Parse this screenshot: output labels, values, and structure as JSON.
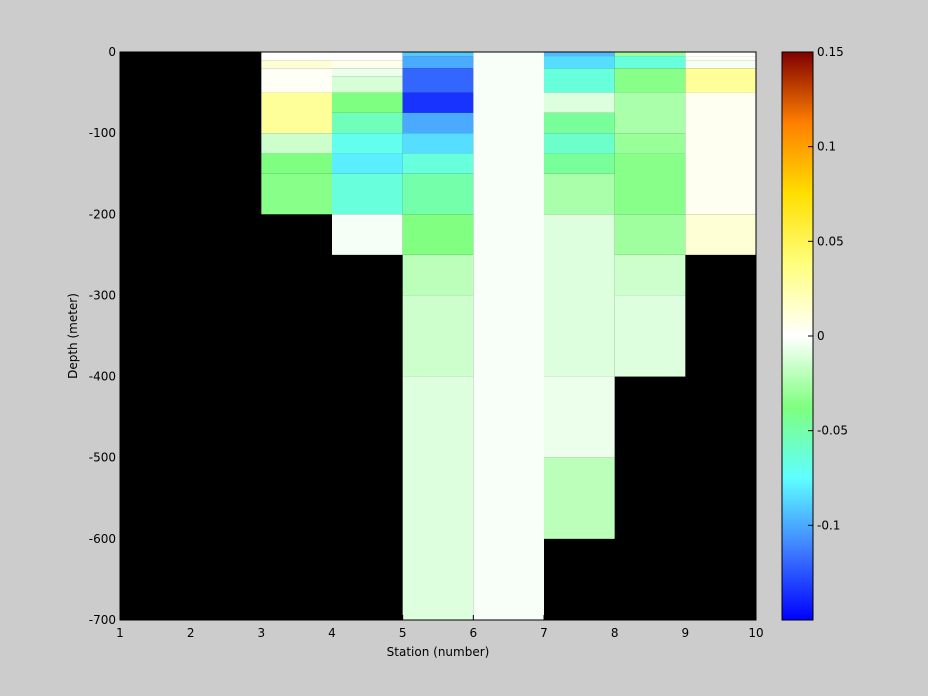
{
  "chart_data": {
    "type": "heatmap",
    "title": "",
    "xlabel": "Station (number)",
    "ylabel": "Depth (meter)",
    "xlim": [
      1,
      10
    ],
    "ylim": [
      -700,
      0
    ],
    "xticks": [
      "1",
      "2",
      "3",
      "4",
      "5",
      "6",
      "7",
      "8",
      "9",
      "10"
    ],
    "yticks": [
      "0",
      "-100",
      "-200",
      "-300",
      "-400",
      "-500",
      "-600",
      "-700"
    ],
    "colorbar": {
      "range": [
        -0.15,
        0.15
      ],
      "ticks": [
        "0.15",
        "0.1",
        "0.05",
        "0",
        "-0.05",
        "-0.1"
      ],
      "tick_values": [
        0.15,
        0.1,
        0.05,
        0,
        -0.05,
        -0.1
      ]
    },
    "background_color": "#000000",
    "columns": [
      {
        "x0": 3,
        "x1": 4,
        "cells": [
          {
            "top": 0,
            "bottom": -10,
            "value": 0.0
          },
          {
            "top": -10,
            "bottom": -20,
            "value": 0.012
          },
          {
            "top": -20,
            "bottom": -50,
            "value": 0.003
          },
          {
            "top": -50,
            "bottom": -100,
            "value": 0.03
          },
          {
            "top": -100,
            "bottom": -125,
            "value": -0.015
          },
          {
            "top": -125,
            "bottom": -150,
            "value": -0.038
          },
          {
            "top": -150,
            "bottom": -200,
            "value": -0.035
          }
        ]
      },
      {
        "x0": 4,
        "x1": 5,
        "cells": [
          {
            "top": 0,
            "bottom": -10,
            "value": 0.0
          },
          {
            "top": -10,
            "bottom": -20,
            "value": 0.006
          },
          {
            "top": -20,
            "bottom": -30,
            "value": -0.006
          },
          {
            "top": -30,
            "bottom": -50,
            "value": -0.012
          },
          {
            "top": -50,
            "bottom": -75,
            "value": -0.038
          },
          {
            "top": -75,
            "bottom": -100,
            "value": -0.055
          },
          {
            "top": -100,
            "bottom": -125,
            "value": -0.07
          },
          {
            "top": -125,
            "bottom": -150,
            "value": -0.08
          },
          {
            "top": -150,
            "bottom": -200,
            "value": -0.065
          },
          {
            "top": -200,
            "bottom": -250,
            "value": -0.003
          }
        ]
      },
      {
        "x0": 5,
        "x1": 6,
        "cells": [
          {
            "top": 0,
            "bottom": -5,
            "value": -0.09
          },
          {
            "top": -5,
            "bottom": -20,
            "value": -0.1
          },
          {
            "top": -20,
            "bottom": -50,
            "value": -0.12
          },
          {
            "top": -50,
            "bottom": -75,
            "value": -0.135
          },
          {
            "top": -75,
            "bottom": -100,
            "value": -0.1
          },
          {
            "top": -100,
            "bottom": -125,
            "value": -0.085
          },
          {
            "top": -125,
            "bottom": -150,
            "value": -0.065
          },
          {
            "top": -150,
            "bottom": -200,
            "value": -0.05
          },
          {
            "top": -200,
            "bottom": -250,
            "value": -0.037
          },
          {
            "top": -250,
            "bottom": -300,
            "value": -0.02
          },
          {
            "top": -300,
            "bottom": -400,
            "value": -0.015
          },
          {
            "top": -400,
            "bottom": -700,
            "value": -0.01
          }
        ]
      },
      {
        "x0": 6,
        "x1": 7,
        "cells": [
          {
            "top": 0,
            "bottom": -700,
            "value": -0.002
          }
        ]
      },
      {
        "x0": 7,
        "x1": 8,
        "cells": [
          {
            "top": 0,
            "bottom": -5,
            "value": -0.095
          },
          {
            "top": -5,
            "bottom": -20,
            "value": -0.085
          },
          {
            "top": -20,
            "bottom": -50,
            "value": -0.065
          },
          {
            "top": -50,
            "bottom": -75,
            "value": -0.01
          },
          {
            "top": -75,
            "bottom": -100,
            "value": -0.045
          },
          {
            "top": -100,
            "bottom": -125,
            "value": -0.06
          },
          {
            "top": -125,
            "bottom": -150,
            "value": -0.045
          },
          {
            "top": -150,
            "bottom": -200,
            "value": -0.025
          },
          {
            "top": -200,
            "bottom": -400,
            "value": -0.01
          },
          {
            "top": -400,
            "bottom": -500,
            "value": -0.006
          },
          {
            "top": -500,
            "bottom": -600,
            "value": -0.02
          }
        ]
      },
      {
        "x0": 8,
        "x1": 9,
        "cells": [
          {
            "top": 0,
            "bottom": -5,
            "value": -0.03
          },
          {
            "top": -5,
            "bottom": -20,
            "value": -0.065
          },
          {
            "top": -20,
            "bottom": -50,
            "value": -0.035
          },
          {
            "top": -50,
            "bottom": -100,
            "value": -0.025
          },
          {
            "top": -100,
            "bottom": -125,
            "value": -0.03
          },
          {
            "top": -125,
            "bottom": -200,
            "value": -0.035
          },
          {
            "top": -200,
            "bottom": -250,
            "value": -0.028
          },
          {
            "top": -250,
            "bottom": -300,
            "value": -0.015
          },
          {
            "top": -300,
            "bottom": -400,
            "value": -0.01
          }
        ]
      },
      {
        "x0": 9,
        "x1": 10,
        "cells": [
          {
            "top": 0,
            "bottom": -5,
            "value": 0.0
          },
          {
            "top": -5,
            "bottom": -10,
            "value": 0.003
          },
          {
            "top": -10,
            "bottom": -20,
            "value": -0.003
          },
          {
            "top": -20,
            "bottom": -50,
            "value": 0.03
          },
          {
            "top": -50,
            "bottom": -200,
            "value": 0.004
          },
          {
            "top": -200,
            "bottom": -250,
            "value": 0.012
          }
        ]
      }
    ]
  }
}
